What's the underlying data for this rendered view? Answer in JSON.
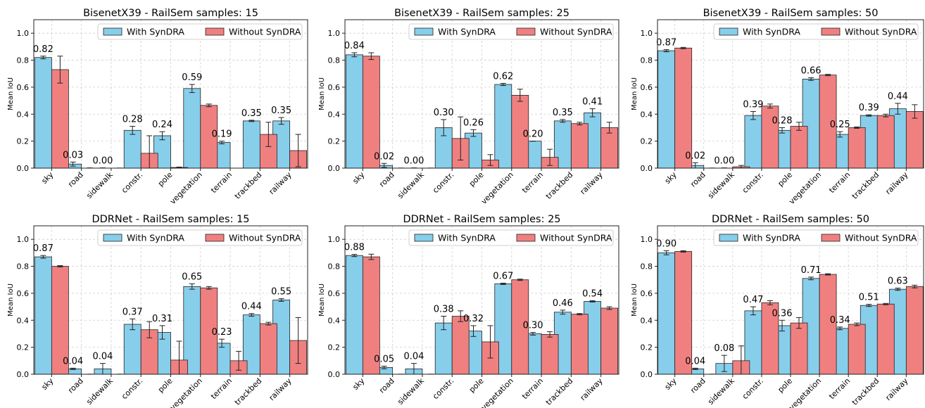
{
  "legend": {
    "with_label": "With SynDRA",
    "without_label": "Without SynDRA",
    "with_color": "#87CEEB",
    "without_color": "#F08080"
  },
  "y_axis": {
    "label": "Mean IoU",
    "ticks": [
      "0.0",
      "0.2",
      "0.4",
      "0.6",
      "0.8",
      "1.0"
    ]
  },
  "chart_data": [
    {
      "type": "bar",
      "title": "BisenetX39 - RailSem samples: 15",
      "categories": [
        "sky",
        "road",
        "sidewalk",
        "constr.",
        "pole",
        "vegetation",
        "terrain",
        "trackbed",
        "railway"
      ],
      "series": [
        {
          "name": "With SynDRA",
          "values": [
            0.82,
            0.03,
            0.0,
            0.28,
            0.24,
            0.59,
            0.19,
            0.35,
            0.35
          ],
          "errors": [
            0.01,
            0.015,
            0.002,
            0.03,
            0.03,
            0.03,
            0.01,
            0.005,
            0.025
          ]
        },
        {
          "name": "Without SynDRA",
          "values": [
            0.73,
            0.0,
            0.0,
            0.11,
            0.005,
            0.465,
            0.0,
            0.25,
            0.13
          ],
          "errors": [
            0.1,
            0.002,
            0.001,
            0.13,
            0.003,
            0.01,
            0.0,
            0.09,
            0.12
          ]
        }
      ],
      "data_labels": [
        "0.82",
        "0.03",
        "0.00",
        "0.28",
        "0.24",
        "0.59",
        "0.19",
        "0.35",
        "0.35"
      ],
      "ylabel": "Mean IoU",
      "ylim": [
        0,
        1.1
      ],
      "grid": true,
      "legend_position": "top-right"
    },
    {
      "type": "bar",
      "title": "BisenetX39 - RailSem samples: 25",
      "categories": [
        "sky",
        "road",
        "sidewalk",
        "constr.",
        "pole",
        "vegetation",
        "terrain",
        "trackbed",
        "railway"
      ],
      "series": [
        {
          "name": "With SynDRA",
          "values": [
            0.84,
            0.02,
            0.0,
            0.3,
            0.26,
            0.62,
            0.2,
            0.35,
            0.41
          ],
          "errors": [
            0.015,
            0.015,
            0.002,
            0.06,
            0.025,
            0.008,
            0.0,
            0.01,
            0.03
          ]
        },
        {
          "name": "Without SynDRA",
          "values": [
            0.83,
            0.0,
            0.0,
            0.22,
            0.06,
            0.54,
            0.08,
            0.33,
            0.3
          ],
          "errors": [
            0.025,
            0.001,
            0.001,
            0.16,
            0.04,
            0.045,
            0.06,
            0.01,
            0.04
          ]
        }
      ],
      "data_labels": [
        "0.84",
        "0.02",
        "0.00",
        "0.30",
        "0.26",
        "0.62",
        "0.20",
        "0.35",
        "0.41"
      ],
      "ylabel": "Mean IoU",
      "ylim": [
        0,
        1.1
      ],
      "grid": true,
      "legend_position": "top-right"
    },
    {
      "type": "bar",
      "title": "BisenetX39 - RailSem samples: 50",
      "categories": [
        "sky",
        "road",
        "sidewalk",
        "constr.",
        "pole",
        "vegetation",
        "terrain",
        "trackbed",
        "railway"
      ],
      "series": [
        {
          "name": "With SynDRA",
          "values": [
            0.87,
            0.02,
            0.0,
            0.39,
            0.28,
            0.66,
            0.25,
            0.39,
            0.44
          ],
          "errors": [
            0.008,
            0.02,
            0.002,
            0.03,
            0.02,
            0.01,
            0.02,
            0.005,
            0.04
          ]
        },
        {
          "name": "Without SynDRA",
          "values": [
            0.89,
            0.0,
            0.01,
            0.46,
            0.31,
            0.69,
            0.3,
            0.39,
            0.42
          ],
          "errors": [
            0.005,
            0.001,
            0.01,
            0.015,
            0.03,
            0.005,
            0.005,
            0.01,
            0.05
          ]
        }
      ],
      "data_labels": [
        "0.87",
        "0.02",
        "0.00",
        "0.39",
        "0.28",
        "0.66",
        "0.25",
        "0.39",
        "0.44"
      ],
      "ylabel": "Mean IoU",
      "ylim": [
        0,
        1.1
      ],
      "grid": true,
      "legend_position": "top-right"
    },
    {
      "type": "bar",
      "title": "DDRNet - RailSem samples: 15",
      "categories": [
        "sky",
        "road",
        "sidewalk",
        "constr.",
        "pole",
        "vegetation",
        "terrain",
        "trackbed",
        "railway"
      ],
      "series": [
        {
          "name": "With SynDRA",
          "values": [
            0.87,
            0.04,
            0.04,
            0.37,
            0.31,
            0.65,
            0.23,
            0.44,
            0.55
          ],
          "errors": [
            0.01,
            0.005,
            0.04,
            0.04,
            0.05,
            0.02,
            0.03,
            0.01,
            0.01
          ]
        },
        {
          "name": "Without SynDRA",
          "values": [
            0.8,
            0.0,
            0.0,
            0.33,
            0.105,
            0.64,
            0.1,
            0.375,
            0.25
          ],
          "errors": [
            0.005,
            0.001,
            0.001,
            0.06,
            0.14,
            0.01,
            0.07,
            0.01,
            0.17
          ]
        }
      ],
      "data_labels": [
        "0.87",
        "0.04",
        "0.04",
        "0.37",
        "0.31",
        "0.65",
        "0.23",
        "0.44",
        "0.55"
      ],
      "ylabel": "Mean IoU",
      "ylim": [
        0,
        1.1
      ],
      "grid": true,
      "legend_position": "top-right"
    },
    {
      "type": "bar",
      "title": "DDRNet - RailSem samples: 25",
      "categories": [
        "sky",
        "road",
        "sidewalk",
        "constr.",
        "pole",
        "vegetation",
        "terrain",
        "trackbed",
        "railway"
      ],
      "series": [
        {
          "name": "With SynDRA",
          "values": [
            0.88,
            0.05,
            0.04,
            0.38,
            0.32,
            0.67,
            0.3,
            0.46,
            0.54
          ],
          "errors": [
            0.008,
            0.01,
            0.04,
            0.05,
            0.04,
            0.005,
            0.01,
            0.015,
            0.005
          ]
        },
        {
          "name": "Without SynDRA",
          "values": [
            0.87,
            0.0,
            0.0,
            0.43,
            0.24,
            0.7,
            0.295,
            0.445,
            0.49
          ],
          "errors": [
            0.02,
            0.001,
            0.001,
            0.04,
            0.12,
            0.005,
            0.02,
            0.005,
            0.01
          ]
        }
      ],
      "data_labels": [
        "0.88",
        "0.05",
        "0.04",
        "0.38",
        "0.32",
        "0.67",
        "0.30",
        "0.46",
        "0.54"
      ],
      "ylabel": "Mean IoU",
      "ylim": [
        0,
        1.1
      ],
      "grid": true,
      "legend_position": "top-right"
    },
    {
      "type": "bar",
      "title": "DDRNet - RailSem samples: 50",
      "categories": [
        "sky",
        "road",
        "sidewalk",
        "constr.",
        "pole",
        "vegetation",
        "terrain",
        "trackbed",
        "railway"
      ],
      "series": [
        {
          "name": "With SynDRA",
          "values": [
            0.9,
            0.04,
            0.08,
            0.47,
            0.36,
            0.71,
            0.34,
            0.51,
            0.63
          ],
          "errors": [
            0.015,
            0.005,
            0.06,
            0.03,
            0.04,
            0.01,
            0.01,
            0.008,
            0.008
          ]
        },
        {
          "name": "Without SynDRA",
          "values": [
            0.91,
            0.0,
            0.1,
            0.53,
            0.38,
            0.74,
            0.37,
            0.52,
            0.65
          ],
          "errors": [
            0.005,
            0.001,
            0.11,
            0.015,
            0.04,
            0.005,
            0.01,
            0.005,
            0.01
          ]
        }
      ],
      "data_labels": [
        "0.90",
        "0.04",
        "0.08",
        "0.47",
        "0.36",
        "0.71",
        "0.34",
        "0.51",
        "0.63"
      ],
      "ylabel": "Mean IoU",
      "ylim": [
        0,
        1.1
      ],
      "grid": true,
      "legend_position": "top-right"
    }
  ]
}
